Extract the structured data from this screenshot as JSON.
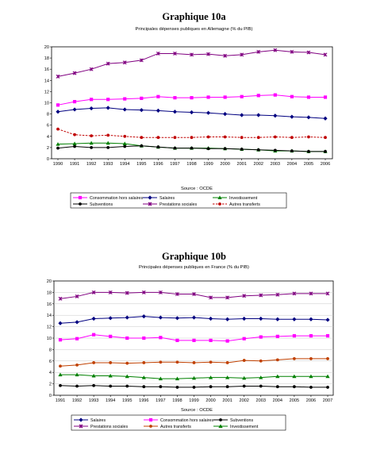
{
  "charts": [
    {
      "heading": "Graphique 10a",
      "subtitle": "Principales dépenses publiques en Allemagne (% du PIB)",
      "source": "Source : OCDE"
    },
    {
      "heading": "Graphique 10b",
      "subtitle": "Principales dépenses publiques en France (% du PIB)",
      "source": "Source : OCDE"
    }
  ],
  "chart_data": [
    {
      "type": "line",
      "title": "Principales dépenses publiques en Allemagne (% du PIB)",
      "xlabel": "",
      "ylabel": "",
      "ylim": [
        0,
        20
      ],
      "ytick_step": 2,
      "grid": false,
      "legend_placement": "bottom",
      "categories": [
        "1990",
        "1991",
        "1992",
        "1993",
        "1994",
        "1995",
        "1996",
        "1997",
        "1998",
        "1999",
        "2000",
        "2001",
        "2002",
        "2003",
        "2004",
        "2005",
        "2006"
      ],
      "series": [
        {
          "name": "Consommation hors salaires",
          "color": "#ff00ff",
          "marker": "square",
          "dash": "solid",
          "values": [
            9.6,
            10.2,
            10.6,
            10.6,
            10.7,
            10.8,
            11.1,
            10.9,
            10.9,
            11.0,
            11.0,
            11.1,
            11.3,
            11.4,
            11.1,
            11.0,
            11.0
          ]
        },
        {
          "name": "Salaires",
          "color": "#000080",
          "marker": "diamond",
          "dash": "solid",
          "values": [
            8.4,
            8.8,
            9.0,
            9.1,
            8.8,
            8.7,
            8.6,
            8.4,
            8.3,
            8.2,
            8.0,
            7.8,
            7.8,
            7.7,
            7.5,
            7.4,
            7.2
          ]
        },
        {
          "name": "Investissement",
          "color": "#008000",
          "marker": "triangle",
          "dash": "solid",
          "values": [
            2.6,
            2.7,
            2.8,
            2.8,
            2.7,
            2.3,
            2.1,
            1.9,
            1.9,
            1.9,
            1.8,
            1.7,
            1.6,
            1.4,
            1.4,
            1.3,
            1.3
          ]
        },
        {
          "name": "Subventions",
          "color": "#000000",
          "marker": "circle",
          "dash": "solid",
          "values": [
            1.9,
            2.2,
            2.0,
            2.0,
            2.2,
            2.3,
            2.1,
            1.9,
            1.9,
            1.8,
            1.8,
            1.7,
            1.6,
            1.5,
            1.4,
            1.3,
            1.3
          ]
        },
        {
          "name": "Prestations sociales",
          "color": "#800080",
          "marker": "x",
          "dash": "solid",
          "values": [
            14.7,
            15.3,
            16.0,
            17.0,
            17.2,
            17.6,
            18.8,
            18.8,
            18.6,
            18.7,
            18.4,
            18.6,
            19.1,
            19.4,
            19.1,
            19.0,
            18.6
          ]
        },
        {
          "name": "Autres transferts",
          "color": "#c00000",
          "marker": "circle",
          "dash": "dashed",
          "values": [
            5.3,
            4.3,
            4.1,
            4.2,
            4.0,
            3.8,
            3.8,
            3.8,
            3.8,
            3.9,
            3.9,
            3.8,
            3.8,
            3.9,
            3.8,
            3.9,
            3.8
          ]
        }
      ]
    },
    {
      "type": "line",
      "title": "Principales dépenses publiques en France (% du PIB)",
      "xlabel": "",
      "ylabel": "",
      "ylim": [
        0,
        20
      ],
      "ytick_step": 2,
      "grid": true,
      "legend_placement": "bottom",
      "categories": [
        "1991",
        "1992",
        "1993",
        "1994",
        "1995",
        "1996",
        "1997",
        "1998",
        "1999",
        "2000",
        "2001",
        "2002",
        "2003",
        "2004",
        "2005",
        "2006",
        "2007"
      ],
      "series": [
        {
          "name": "Salaires",
          "color": "#000080",
          "marker": "diamond",
          "dash": "solid",
          "values": [
            12.6,
            12.8,
            13.4,
            13.5,
            13.6,
            13.8,
            13.6,
            13.5,
            13.6,
            13.4,
            13.3,
            13.4,
            13.4,
            13.3,
            13.3,
            13.3,
            13.2
          ]
        },
        {
          "name": "Consommation hors salaires",
          "color": "#ff00ff",
          "marker": "square",
          "dash": "solid",
          "values": [
            9.7,
            9.9,
            10.6,
            10.3,
            10.0,
            10.0,
            10.1,
            9.6,
            9.6,
            9.6,
            9.5,
            9.9,
            10.2,
            10.3,
            10.4,
            10.4,
            10.4
          ]
        },
        {
          "name": "Subventions",
          "color": "#000000",
          "marker": "circle",
          "dash": "solid",
          "values": [
            1.7,
            1.6,
            1.7,
            1.6,
            1.6,
            1.5,
            1.5,
            1.4,
            1.4,
            1.5,
            1.5,
            1.6,
            1.6,
            1.5,
            1.5,
            1.4,
            1.4
          ]
        },
        {
          "name": "Prestations sociales",
          "color": "#800080",
          "marker": "x",
          "dash": "solid",
          "values": [
            16.9,
            17.3,
            18.0,
            18.0,
            17.9,
            18.0,
            18.0,
            17.7,
            17.7,
            17.1,
            17.1,
            17.4,
            17.5,
            17.6,
            17.8,
            17.8,
            17.8
          ]
        },
        {
          "name": "Autres transferts",
          "color": "#c04000",
          "marker": "circle",
          "dash": "solid",
          "values": [
            5.1,
            5.3,
            5.7,
            5.7,
            5.6,
            5.7,
            5.8,
            5.8,
            5.7,
            5.8,
            5.7,
            6.1,
            6.0,
            6.2,
            6.4,
            6.4,
            6.4
          ]
        },
        {
          "name": "Investissement",
          "color": "#008000",
          "marker": "triangle",
          "dash": "solid",
          "values": [
            3.6,
            3.6,
            3.4,
            3.4,
            3.3,
            3.1,
            2.9,
            2.9,
            3.0,
            3.1,
            3.1,
            3.0,
            3.1,
            3.3,
            3.3,
            3.3,
            3.3
          ]
        }
      ]
    }
  ]
}
